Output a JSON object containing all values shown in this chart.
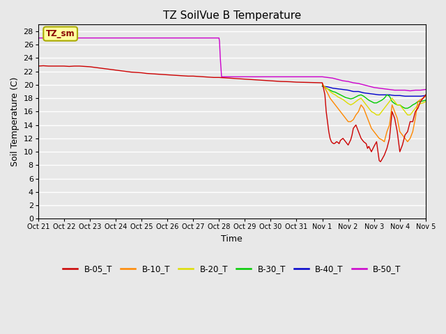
{
  "title": "TZ SoilVue B Temperature",
  "xlabel": "Time",
  "ylabel": "Soil Temperature (C)",
  "ylim": [
    0,
    29
  ],
  "yticks": [
    0,
    2,
    4,
    6,
    8,
    10,
    12,
    14,
    16,
    18,
    20,
    22,
    24,
    26,
    28
  ],
  "xtick_labels": [
    "Oct 21",
    "Oct 22",
    "Oct 23",
    "Oct 24",
    "Oct 25",
    "Oct 26",
    "Oct 27",
    "Oct 28",
    "Oct 29",
    "Oct 30",
    "Oct 31",
    "Nov 1",
    "Nov 2",
    "Nov 3",
    "Nov 4",
    "Nov 5"
  ],
  "annotation_text": "TZ_sm",
  "legend_entries": [
    "B-05_T",
    "B-10_T",
    "B-20_T",
    "B-30_T",
    "B-40_T",
    "B-50_T"
  ],
  "legend_colors": [
    "#cc0000",
    "#ff8800",
    "#dddd00",
    "#00cc00",
    "#0000cc",
    "#cc00cc"
  ],
  "bg_color": "#e8e8e8",
  "plot_bg_color": "#e8e8e8",
  "grid_color": "#ffffff",
  "series": {
    "B-05_T": {
      "color": "#cc0000",
      "x": [
        0,
        0.2,
        0.4,
        0.6,
        0.8,
        1.0,
        1.2,
        1.4,
        1.6,
        1.8,
        2.0,
        2.2,
        2.4,
        2.6,
        2.8,
        3.0,
        3.2,
        3.4,
        3.6,
        3.8,
        4.0,
        4.2,
        4.4,
        4.6,
        4.8,
        5.0,
        5.2,
        5.4,
        5.6,
        5.8,
        6.0,
        6.2,
        6.4,
        6.6,
        6.8,
        7.0,
        7.2,
        7.4,
        7.6,
        7.8,
        8.0,
        8.2,
        8.4,
        8.6,
        8.8,
        9.0,
        9.2,
        9.4,
        9.6,
        9.8,
        10.0,
        10.2,
        10.4,
        10.6,
        10.8,
        11.0,
        11.1,
        11.15,
        11.2,
        11.25,
        11.3,
        11.35,
        11.4,
        11.45,
        11.5,
        11.55,
        11.6,
        11.65,
        11.7,
        11.8,
        11.9,
        12.0,
        12.1,
        12.15,
        12.2,
        12.3,
        12.4,
        12.45,
        12.5,
        12.6,
        12.7,
        12.75,
        12.8,
        12.9,
        13.0,
        13.1,
        13.2,
        13.25,
        13.3,
        13.4,
        13.5,
        13.6,
        13.7,
        13.8,
        13.9,
        14.0,
        14.1,
        14.2,
        14.3,
        14.4,
        14.5,
        14.6,
        14.7,
        14.8,
        14.9,
        15.0
      ],
      "y": [
        22.8,
        22.85,
        22.8,
        22.8,
        22.8,
        22.8,
        22.75,
        22.8,
        22.8,
        22.75,
        22.7,
        22.6,
        22.5,
        22.4,
        22.3,
        22.2,
        22.1,
        22.0,
        21.9,
        21.85,
        21.8,
        21.7,
        21.65,
        21.6,
        21.55,
        21.5,
        21.45,
        21.4,
        21.35,
        21.3,
        21.3,
        21.25,
        21.2,
        21.15,
        21.1,
        21.1,
        21.05,
        21.0,
        20.95,
        20.9,
        20.85,
        20.8,
        20.75,
        20.7,
        20.65,
        20.6,
        20.55,
        20.5,
        20.48,
        20.45,
        20.4,
        20.38,
        20.36,
        20.34,
        20.32,
        20.3,
        18.5,
        16.0,
        14.5,
        13.0,
        12.0,
        11.5,
        11.3,
        11.2,
        11.3,
        11.5,
        11.4,
        11.2,
        11.7,
        12.0,
        11.5,
        11.0,
        11.8,
        12.5,
        13.5,
        14.0,
        13.0,
        12.5,
        12.0,
        11.5,
        11.2,
        10.5,
        10.8,
        10.0,
        10.8,
        11.5,
        8.7,
        8.5,
        8.8,
        9.5,
        10.5,
        12.0,
        16.0,
        15.0,
        13.0,
        10.0,
        11.0,
        12.5,
        13.0,
        14.5,
        14.5,
        16.0,
        16.5,
        17.5,
        18.0,
        18.5
      ]
    },
    "B-10_T": {
      "color": "#ff8800",
      "x": [
        11.0,
        11.1,
        11.2,
        11.3,
        11.4,
        11.5,
        11.6,
        11.7,
        11.8,
        11.9,
        12.0,
        12.1,
        12.2,
        12.3,
        12.4,
        12.45,
        12.5,
        12.6,
        12.7,
        12.8,
        12.9,
        13.0,
        13.1,
        13.2,
        13.3,
        13.4,
        13.5,
        13.6,
        13.7,
        13.8,
        13.9,
        14.0,
        14.1,
        14.2,
        14.3,
        14.4,
        14.5,
        14.6,
        14.7,
        14.8,
        14.9,
        15.0
      ],
      "y": [
        20.2,
        19.5,
        18.8,
        18.0,
        17.5,
        17.0,
        16.5,
        16.0,
        15.5,
        15.0,
        14.5,
        14.5,
        14.8,
        15.5,
        16.0,
        16.5,
        17.0,
        16.5,
        15.5,
        14.5,
        13.5,
        13.0,
        12.5,
        12.0,
        11.8,
        11.5,
        13.0,
        14.0,
        17.0,
        16.0,
        15.0,
        13.0,
        12.5,
        12.0,
        11.5,
        12.0,
        13.0,
        15.0,
        17.5,
        17.8,
        18.0,
        18.3
      ]
    },
    "B-20_T": {
      "color": "#dddd00",
      "x": [
        11.0,
        11.1,
        11.2,
        11.3,
        11.4,
        11.5,
        11.6,
        11.7,
        11.8,
        11.9,
        12.0,
        12.1,
        12.2,
        12.3,
        12.4,
        12.5,
        12.6,
        12.7,
        12.8,
        12.9,
        13.0,
        13.1,
        13.2,
        13.3,
        13.4,
        13.5,
        13.6,
        13.7,
        13.8,
        13.9,
        14.0,
        14.1,
        14.2,
        14.3,
        14.4,
        14.5,
        14.6,
        14.7,
        14.8,
        14.9,
        15.0
      ],
      "y": [
        20.0,
        19.7,
        19.4,
        19.0,
        18.7,
        18.5,
        18.2,
        18.0,
        17.8,
        17.5,
        17.2,
        17.0,
        17.2,
        17.5,
        17.8,
        18.0,
        17.5,
        17.0,
        16.5,
        16.0,
        15.8,
        15.5,
        15.5,
        16.0,
        16.5,
        17.0,
        17.5,
        18.0,
        17.5,
        17.0,
        17.0,
        16.5,
        16.0,
        15.5,
        15.5,
        16.0,
        16.5,
        17.0,
        17.2,
        17.3,
        17.5
      ]
    },
    "B-30_T": {
      "color": "#00cc00",
      "x": [
        11.0,
        11.1,
        11.2,
        11.3,
        11.4,
        11.5,
        11.6,
        11.7,
        11.8,
        11.9,
        12.0,
        12.1,
        12.2,
        12.3,
        12.4,
        12.5,
        12.6,
        12.7,
        12.8,
        12.9,
        13.0,
        13.1,
        13.2,
        13.3,
        13.4,
        13.5,
        13.6,
        13.7,
        13.8,
        13.9,
        14.0,
        14.1,
        14.2,
        14.3,
        14.4,
        14.5,
        14.6,
        14.7,
        14.8,
        14.9,
        15.0
      ],
      "y": [
        19.8,
        19.6,
        19.4,
        19.2,
        19.0,
        18.9,
        18.7,
        18.5,
        18.3,
        18.1,
        18.0,
        17.9,
        18.0,
        18.2,
        18.4,
        18.5,
        18.3,
        18.0,
        17.7,
        17.5,
        17.3,
        17.3,
        17.5,
        17.7,
        18.0,
        18.5,
        18.3,
        17.5,
        17.2,
        17.0,
        17.0,
        16.7,
        16.5,
        16.5,
        16.7,
        17.0,
        17.2,
        17.5,
        17.5,
        17.6,
        17.7
      ]
    },
    "B-40_T": {
      "color": "#0000cc",
      "x": [
        11.0,
        11.2,
        11.4,
        11.6,
        11.8,
        12.0,
        12.2,
        12.4,
        12.6,
        12.8,
        13.0,
        13.2,
        13.4,
        13.6,
        13.8,
        14.0,
        14.2,
        14.4,
        14.6,
        14.8,
        15.0
      ],
      "y": [
        19.8,
        19.7,
        19.5,
        19.4,
        19.3,
        19.2,
        19.0,
        19.0,
        18.8,
        18.7,
        18.6,
        18.5,
        18.5,
        18.5,
        18.4,
        18.4,
        18.3,
        18.3,
        18.3,
        18.3,
        18.4
      ]
    },
    "B-50_T": {
      "color": "#cc00cc",
      "x": [
        0.0,
        0.5,
        1.0,
        1.5,
        2.0,
        2.5,
        3.0,
        3.5,
        4.0,
        4.5,
        5.0,
        5.5,
        6.0,
        6.5,
        7.0,
        7.02,
        7.05,
        7.1,
        7.5,
        8.0,
        8.5,
        9.0,
        9.5,
        10.0,
        10.5,
        11.0,
        11.2,
        11.4,
        11.6,
        11.8,
        12.0,
        12.2,
        12.4,
        12.6,
        12.8,
        13.0,
        13.2,
        13.4,
        13.6,
        13.8,
        14.0,
        14.2,
        14.4,
        14.6,
        14.8,
        15.0
      ],
      "y": [
        27.0,
        27.0,
        27.0,
        27.0,
        27.0,
        27.0,
        27.0,
        27.0,
        27.0,
        27.0,
        27.0,
        27.0,
        27.0,
        27.0,
        27.0,
        26.5,
        24.0,
        21.2,
        21.2,
        21.2,
        21.2,
        21.2,
        21.2,
        21.2,
        21.2,
        21.2,
        21.1,
        21.0,
        20.8,
        20.6,
        20.5,
        20.3,
        20.2,
        20.0,
        19.8,
        19.6,
        19.5,
        19.4,
        19.3,
        19.2,
        19.2,
        19.2,
        19.1,
        19.2,
        19.2,
        19.3
      ]
    }
  }
}
